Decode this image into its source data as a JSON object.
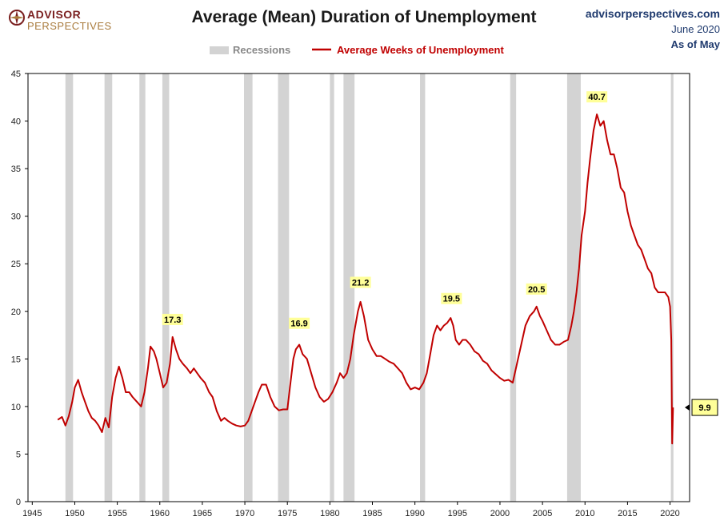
{
  "header": {
    "title": "Average (Mean) Duration of Unemployment",
    "logo_line1": "ADVISOR",
    "logo_line2": "PERSPECTIVES",
    "source_site": "advisorperspectives.com",
    "source_date": "June 2020",
    "source_asof": "As of May"
  },
  "colors": {
    "line": "#c00000",
    "recession": "#d3d3d3",
    "label_bg": "#ffff99",
    "axis": "#000000"
  },
  "chart_data": {
    "type": "line",
    "title": "Average (Mean) Duration of Unemployment",
    "xlabel": "",
    "ylabel": "",
    "xlim": [
      1944.5,
      2022.3
    ],
    "ylim": [
      0,
      45
    ],
    "x_ticks": [
      1945,
      1950,
      1955,
      1960,
      1965,
      1970,
      1975,
      1980,
      1985,
      1990,
      1995,
      2000,
      2005,
      2010,
      2015,
      2020
    ],
    "y_ticks": [
      0,
      5,
      10,
      15,
      20,
      25,
      30,
      35,
      40,
      45
    ],
    "grid": false,
    "legend_position": "top-center",
    "legend": [
      {
        "label": "Recessions",
        "kind": "band"
      },
      {
        "label": "Average Weeks of Unemployment",
        "kind": "line"
      }
    ],
    "recessions": [
      [
        1948.9,
        1949.8
      ],
      [
        1953.5,
        1954.4
      ],
      [
        1957.6,
        1958.3
      ],
      [
        1960.3,
        1961.1
      ],
      [
        1969.9,
        1970.9
      ],
      [
        1973.9,
        1975.2
      ],
      [
        1980.0,
        1980.5
      ],
      [
        1981.6,
        1982.9
      ],
      [
        1990.6,
        1991.2
      ],
      [
        2001.2,
        2001.9
      ],
      [
        2007.9,
        2009.5
      ],
      [
        2020.1,
        2020.4
      ]
    ],
    "series": [
      {
        "name": "Average Weeks of Unemployment",
        "points": [
          [
            1948.0,
            8.6
          ],
          [
            1948.5,
            8.9
          ],
          [
            1948.9,
            8.0
          ],
          [
            1949.3,
            9.0
          ],
          [
            1949.7,
            10.5
          ],
          [
            1950.0,
            12.0
          ],
          [
            1950.4,
            12.8
          ],
          [
            1950.8,
            11.5
          ],
          [
            1951.2,
            10.5
          ],
          [
            1951.6,
            9.5
          ],
          [
            1952.0,
            8.8
          ],
          [
            1952.4,
            8.5
          ],
          [
            1952.8,
            8.0
          ],
          [
            1953.2,
            7.3
          ],
          [
            1953.6,
            8.8
          ],
          [
            1954.0,
            7.8
          ],
          [
            1954.4,
            11.0
          ],
          [
            1954.8,
            13.0
          ],
          [
            1955.2,
            14.2
          ],
          [
            1955.6,
            13.0
          ],
          [
            1956.0,
            11.5
          ],
          [
            1956.4,
            11.5
          ],
          [
            1956.8,
            11.0
          ],
          [
            1957.3,
            10.5
          ],
          [
            1957.8,
            10.0
          ],
          [
            1958.2,
            11.5
          ],
          [
            1958.6,
            14.0
          ],
          [
            1958.9,
            16.3
          ],
          [
            1959.3,
            15.8
          ],
          [
            1959.6,
            15.0
          ],
          [
            1960.0,
            13.5
          ],
          [
            1960.4,
            12.0
          ],
          [
            1960.8,
            12.5
          ],
          [
            1961.2,
            14.5
          ],
          [
            1961.5,
            17.3
          ],
          [
            1961.9,
            16.0
          ],
          [
            1962.3,
            15.0
          ],
          [
            1962.7,
            14.5
          ],
          [
            1963.2,
            14.0
          ],
          [
            1963.6,
            13.5
          ],
          [
            1964.0,
            14.0
          ],
          [
            1964.4,
            13.5
          ],
          [
            1964.8,
            13.0
          ],
          [
            1965.3,
            12.5
          ],
          [
            1965.8,
            11.5
          ],
          [
            1966.2,
            11.0
          ],
          [
            1966.7,
            9.5
          ],
          [
            1967.2,
            8.5
          ],
          [
            1967.6,
            8.8
          ],
          [
            1968.0,
            8.5
          ],
          [
            1968.5,
            8.2
          ],
          [
            1969.0,
            8.0
          ],
          [
            1969.5,
            7.9
          ],
          [
            1970.0,
            8.0
          ],
          [
            1970.4,
            8.5
          ],
          [
            1970.8,
            9.5
          ],
          [
            1971.2,
            10.5
          ],
          [
            1971.6,
            11.5
          ],
          [
            1972.0,
            12.3
          ],
          [
            1972.5,
            12.3
          ],
          [
            1973.0,
            11.0
          ],
          [
            1973.5,
            10.0
          ],
          [
            1974.0,
            9.6
          ],
          [
            1974.5,
            9.7
          ],
          [
            1975.0,
            9.7
          ],
          [
            1975.3,
            12.0
          ],
          [
            1975.7,
            15.0
          ],
          [
            1976.0,
            16.0
          ],
          [
            1976.4,
            16.5
          ],
          [
            1976.8,
            15.5
          ],
          [
            1977.3,
            15.0
          ],
          [
            1977.8,
            13.5
          ],
          [
            1978.3,
            12.0
          ],
          [
            1978.8,
            11.0
          ],
          [
            1979.3,
            10.5
          ],
          [
            1979.8,
            10.8
          ],
          [
            1980.3,
            11.5
          ],
          [
            1980.8,
            12.5
          ],
          [
            1981.2,
            13.5
          ],
          [
            1981.6,
            13.0
          ],
          [
            1982.0,
            13.5
          ],
          [
            1982.4,
            15.0
          ],
          [
            1982.8,
            17.5
          ],
          [
            1983.3,
            20.0
          ],
          [
            1983.6,
            21.0
          ],
          [
            1984.0,
            19.5
          ],
          [
            1984.5,
            17.0
          ],
          [
            1985.0,
            16.0
          ],
          [
            1985.5,
            15.3
          ],
          [
            1986.0,
            15.3
          ],
          [
            1986.5,
            15.0
          ],
          [
            1987.0,
            14.7
          ],
          [
            1987.5,
            14.5
          ],
          [
            1988.0,
            14.0
          ],
          [
            1988.5,
            13.5
          ],
          [
            1989.0,
            12.5
          ],
          [
            1989.5,
            11.8
          ],
          [
            1990.0,
            12.0
          ],
          [
            1990.5,
            11.8
          ],
          [
            1991.0,
            12.5
          ],
          [
            1991.4,
            13.5
          ],
          [
            1991.8,
            15.5
          ],
          [
            1992.2,
            17.5
          ],
          [
            1992.6,
            18.5
          ],
          [
            1993.0,
            18.0
          ],
          [
            1993.4,
            18.5
          ],
          [
            1993.8,
            18.8
          ],
          [
            1994.2,
            19.3
          ],
          [
            1994.5,
            18.5
          ],
          [
            1994.8,
            17.0
          ],
          [
            1995.2,
            16.5
          ],
          [
            1995.6,
            17.0
          ],
          [
            1996.0,
            17.0
          ],
          [
            1996.5,
            16.5
          ],
          [
            1997.0,
            15.8
          ],
          [
            1997.5,
            15.5
          ],
          [
            1998.0,
            14.8
          ],
          [
            1998.5,
            14.5
          ],
          [
            1999.0,
            13.8
          ],
          [
            1999.5,
            13.4
          ],
          [
            2000.0,
            13.0
          ],
          [
            2000.5,
            12.7
          ],
          [
            2001.0,
            12.8
          ],
          [
            2001.5,
            12.5
          ],
          [
            2002.0,
            14.5
          ],
          [
            2002.5,
            16.5
          ],
          [
            2003.0,
            18.5
          ],
          [
            2003.5,
            19.5
          ],
          [
            2004.0,
            20.0
          ],
          [
            2004.3,
            20.5
          ],
          [
            2004.7,
            19.5
          ],
          [
            2005.0,
            19.0
          ],
          [
            2005.5,
            18.0
          ],
          [
            2006.0,
            17.0
          ],
          [
            2006.5,
            16.5
          ],
          [
            2007.0,
            16.5
          ],
          [
            2007.5,
            16.8
          ],
          [
            2008.0,
            17.0
          ],
          [
            2008.4,
            18.5
          ],
          [
            2008.7,
            20.0
          ],
          [
            2009.0,
            22.0
          ],
          [
            2009.3,
            24.5
          ],
          [
            2009.6,
            28.0
          ],
          [
            2010.0,
            30.5
          ],
          [
            2010.3,
            33.5
          ],
          [
            2010.6,
            36.0
          ],
          [
            2011.0,
            39.0
          ],
          [
            2011.4,
            40.7
          ],
          [
            2011.8,
            39.5
          ],
          [
            2012.2,
            40.0
          ],
          [
            2012.6,
            38.0
          ],
          [
            2013.0,
            36.5
          ],
          [
            2013.4,
            36.5
          ],
          [
            2013.8,
            35.0
          ],
          [
            2014.2,
            33.0
          ],
          [
            2014.6,
            32.5
          ],
          [
            2015.0,
            30.5
          ],
          [
            2015.4,
            29.0
          ],
          [
            2015.8,
            28.0
          ],
          [
            2016.2,
            27.0
          ],
          [
            2016.6,
            26.5
          ],
          [
            2017.0,
            25.5
          ],
          [
            2017.4,
            24.5
          ],
          [
            2017.8,
            24.0
          ],
          [
            2018.2,
            22.5
          ],
          [
            2018.6,
            22.0
          ],
          [
            2019.0,
            22.0
          ],
          [
            2019.4,
            22.0
          ],
          [
            2019.8,
            21.5
          ],
          [
            2020.0,
            20.5
          ],
          [
            2020.15,
            17.0
          ],
          [
            2020.25,
            6.1
          ],
          [
            2020.35,
            9.9
          ]
        ]
      }
    ],
    "annotations": [
      {
        "x": 1961.5,
        "y": 17.3,
        "text": "17.3"
      },
      {
        "x": 1976.4,
        "y": 16.9,
        "text": "16.9"
      },
      {
        "x": 1983.6,
        "y": 21.2,
        "text": "21.2"
      },
      {
        "x": 1994.3,
        "y": 19.5,
        "text": "19.5"
      },
      {
        "x": 2004.3,
        "y": 20.5,
        "text": "20.5"
      },
      {
        "x": 2011.4,
        "y": 40.7,
        "text": "40.7"
      }
    ],
    "last_value": {
      "x": 2020.35,
      "y": 9.9,
      "text": "9.9"
    }
  }
}
